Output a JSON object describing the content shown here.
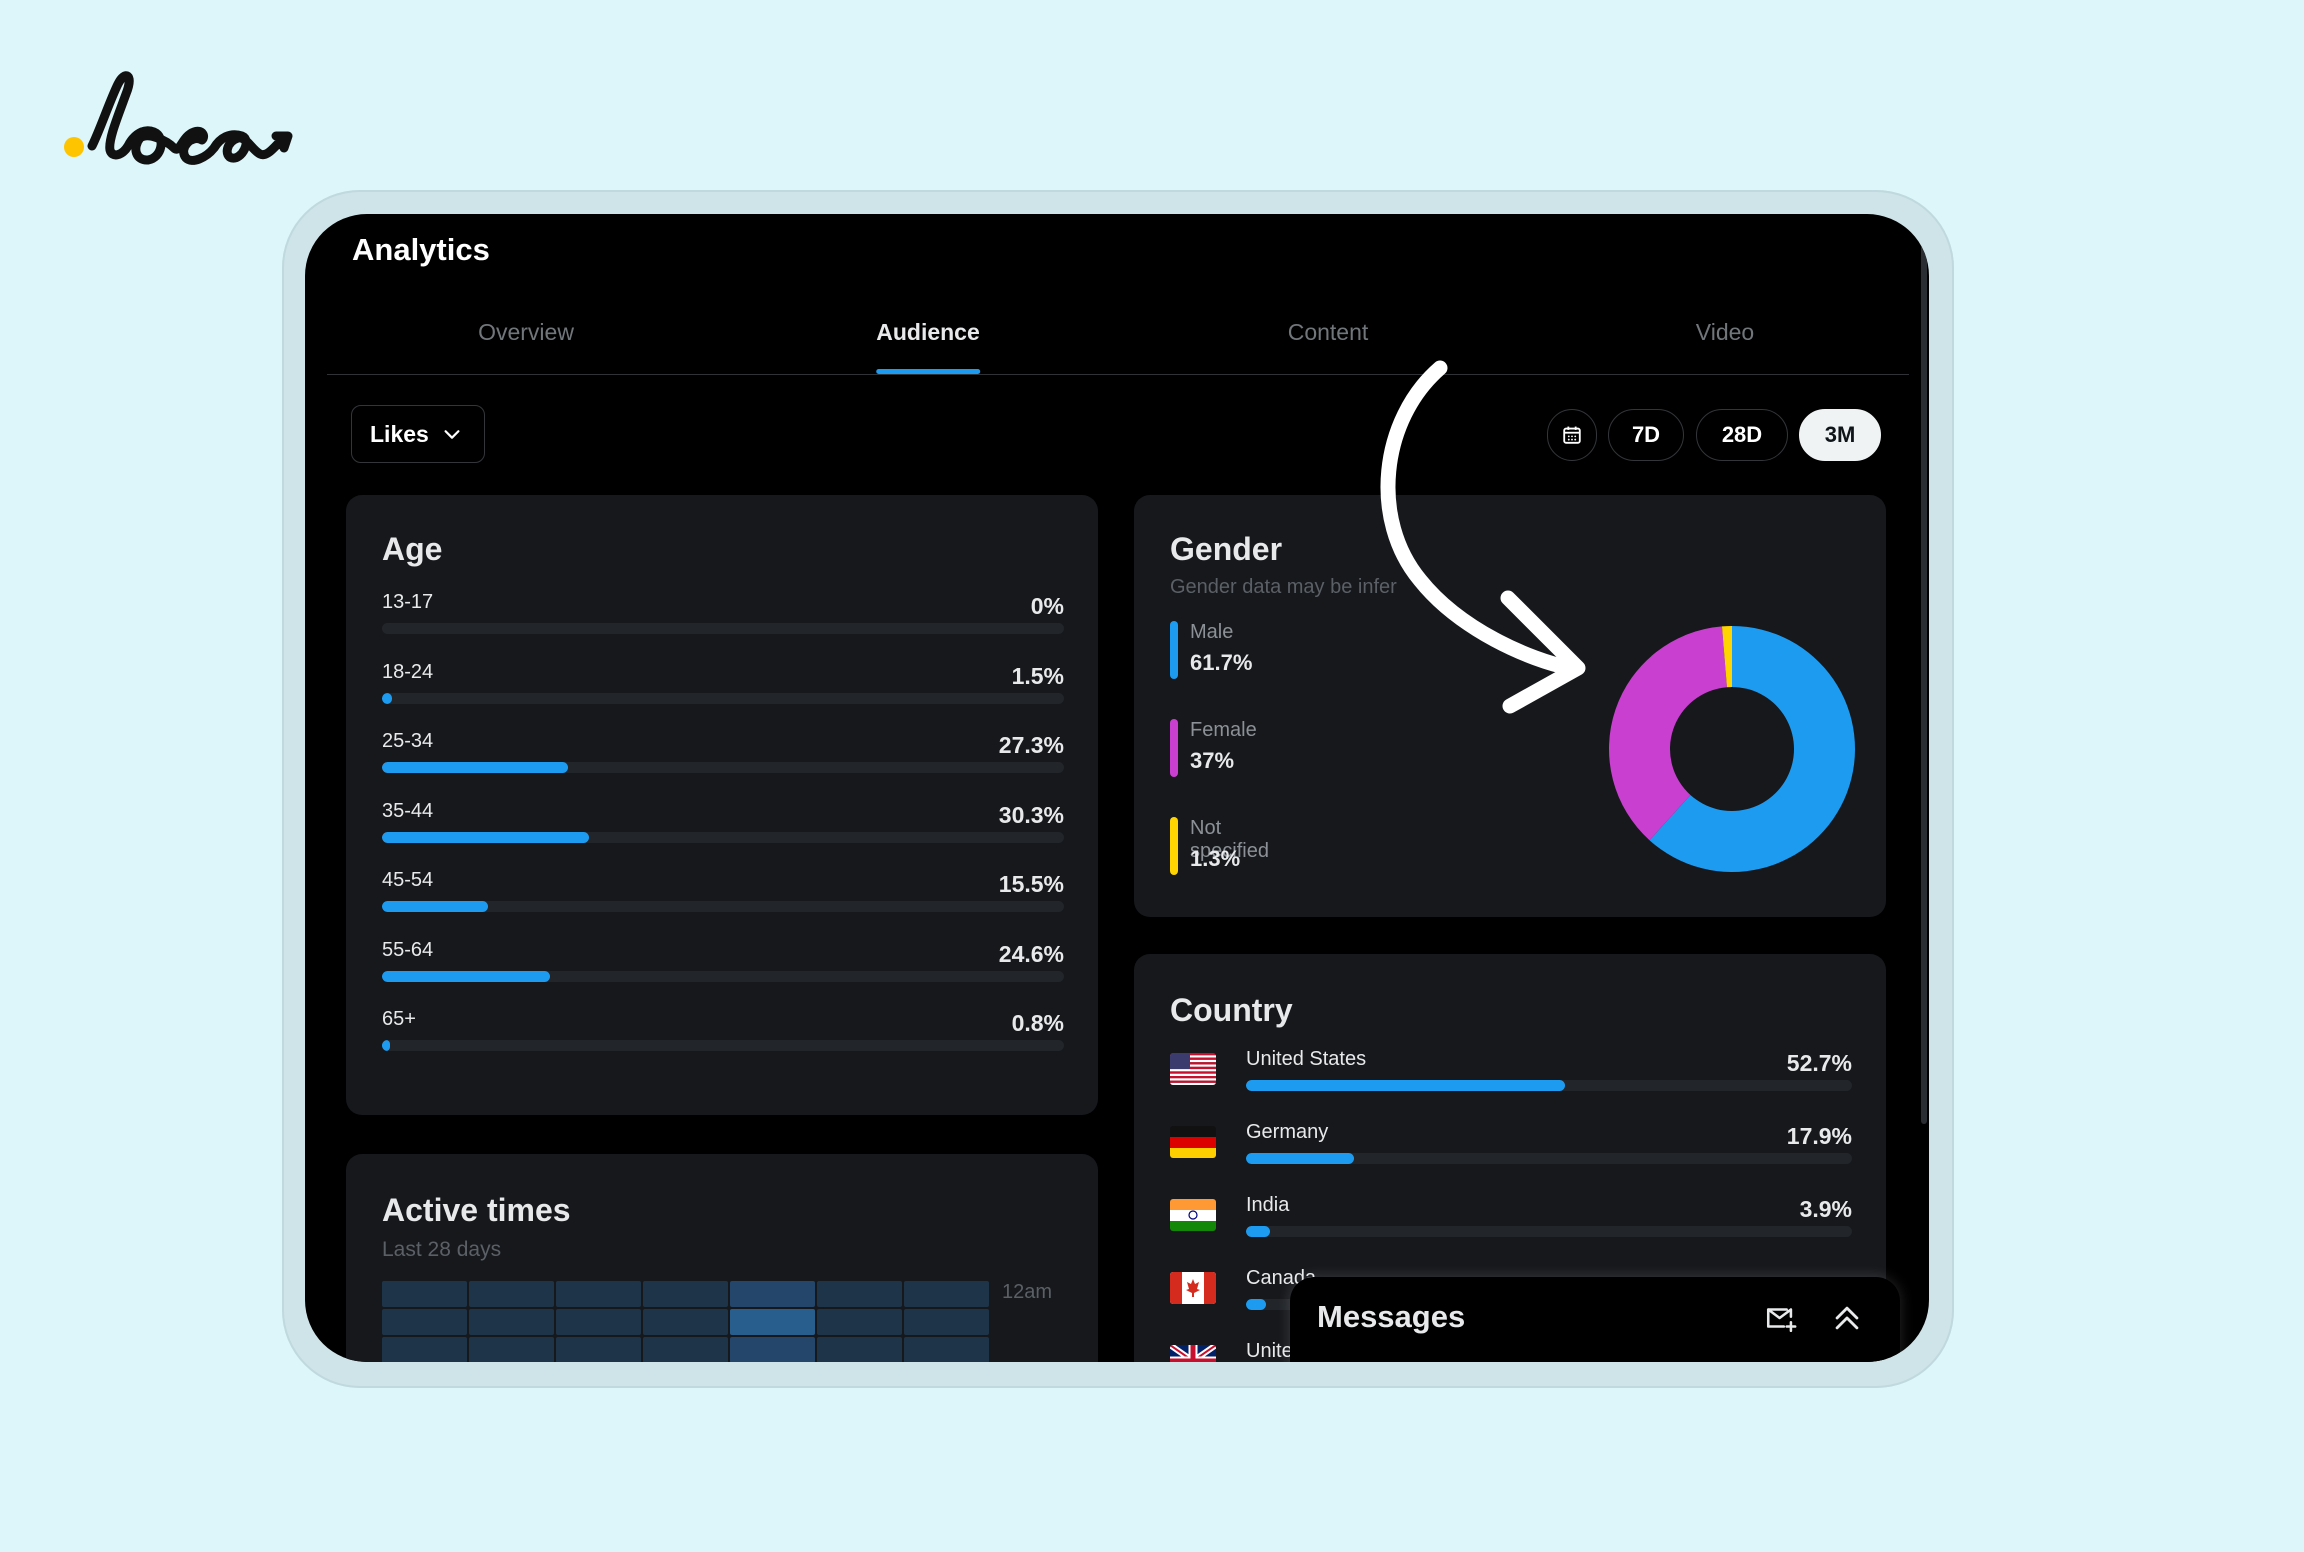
{
  "brand": {
    "logo_text": "loca"
  },
  "app": {
    "title": "Analytics"
  },
  "tabs": [
    {
      "label": "Overview",
      "active": false
    },
    {
      "label": "Audience",
      "active": true
    },
    {
      "label": "Content",
      "active": false
    },
    {
      "label": "Video",
      "active": false
    }
  ],
  "filter": {
    "metric_label": "Likes"
  },
  "ranges": [
    {
      "label": "7D",
      "active": false
    },
    {
      "label": "28D",
      "active": false
    },
    {
      "label": "3M",
      "active": true
    }
  ],
  "age": {
    "title": "Age",
    "rows": [
      {
        "label": "13-17",
        "pct": "0%",
        "value": 0
      },
      {
        "label": "18-24",
        "pct": "1.5%",
        "value": 1.5
      },
      {
        "label": "25-34",
        "pct": "27.3%",
        "value": 27.3
      },
      {
        "label": "35-44",
        "pct": "30.3%",
        "value": 30.3
      },
      {
        "label": "45-54",
        "pct": "15.5%",
        "value": 15.5
      },
      {
        "label": "55-64",
        "pct": "24.6%",
        "value": 24.6
      },
      {
        "label": "65+",
        "pct": "0.8%",
        "value": 0.8
      }
    ]
  },
  "gender": {
    "title": "Gender",
    "subtitle": "Gender data may be infer",
    "items": [
      {
        "name": "Male",
        "value_label": "61.7%",
        "value": 61.7,
        "color": "#1d9bf0"
      },
      {
        "name": "Female",
        "value_label": "37%",
        "value": 37,
        "color": "#c93fd0"
      },
      {
        "name": "Not specified",
        "value_label": "1.3%",
        "value": 1.3,
        "color": "#ffd400"
      }
    ]
  },
  "country": {
    "title": "Country",
    "rows": [
      {
        "name": "United States",
        "pct": "52.7%",
        "value": 52.7,
        "flag": "us"
      },
      {
        "name": "Germany",
        "pct": "17.9%",
        "value": 17.9,
        "flag": "de"
      },
      {
        "name": "India",
        "pct": "3.9%",
        "value": 3.9,
        "flag": "in"
      },
      {
        "name": "Canada",
        "pct": "",
        "value": 3.3,
        "flag": "ca"
      },
      {
        "name": "United",
        "pct": "",
        "value": 0,
        "flag": "gb"
      }
    ]
  },
  "active_times": {
    "title": "Active times",
    "subtitle": "Last 28 days",
    "first_row_label": "12am",
    "grid_levels": [
      [
        1,
        1,
        1,
        1,
        2,
        1,
        1
      ],
      [
        1,
        1,
        1,
        1,
        3,
        1,
        1
      ],
      [
        1,
        1,
        1,
        1,
        2,
        1,
        1
      ]
    ]
  },
  "messages": {
    "title": "Messages"
  },
  "colors": {
    "accent": "#1d9bf0",
    "card": "#16181c",
    "track": "#22252a",
    "heat_levels": [
      "#1a2330",
      "#1e3449",
      "#23466a",
      "#285e8e"
    ]
  },
  "icons": [
    "calendar-icon",
    "chevron-down-icon",
    "new-message-icon",
    "chevrons-up-icon",
    "curved-arrow"
  ]
}
